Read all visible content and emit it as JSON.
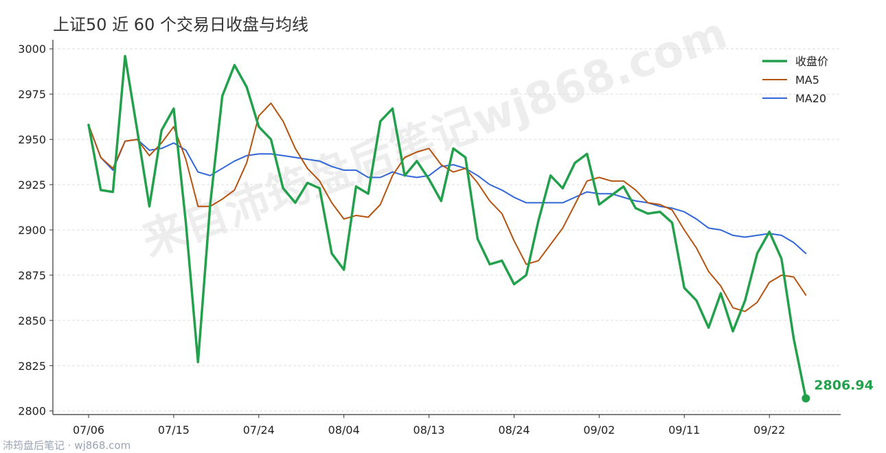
{
  "title": "上证50 近 60 个交易日收盘与均线",
  "watermark": "来自沛筠盘后笔记wj868.com",
  "footer": "沛筠盘后笔记 · wj868.com",
  "colors": {
    "close": "#22a04b",
    "ma5": "#b5530e",
    "ma20": "#2f66d8"
  },
  "chart_data": {
    "type": "line",
    "title": "上证50 近 60 个交易日收盘与均线",
    "xlabel": "",
    "ylabel": "",
    "ylim": [
      2798,
      3005
    ],
    "yticks": [
      2800,
      2825,
      2850,
      2875,
      2900,
      2925,
      2950,
      2975,
      3000
    ],
    "xticks": [
      {
        "index": 0,
        "label": "07/06"
      },
      {
        "index": 7,
        "label": "07/15"
      },
      {
        "index": 14,
        "label": "07/24"
      },
      {
        "index": 21,
        "label": "08/04"
      },
      {
        "index": 28,
        "label": "08/13"
      },
      {
        "index": 35,
        "label": "08/24"
      },
      {
        "index": 42,
        "label": "09/02"
      },
      {
        "index": 49,
        "label": "09/11"
      },
      {
        "index": 56,
        "label": "09/22"
      }
    ],
    "grid": true,
    "legend_position": "top-right",
    "series": [
      {
        "name": "收盘价",
        "key": "close",
        "values": [
          2958,
          2922,
          2921,
          2996,
          2955,
          2913,
          2955,
          2967,
          2904,
          2827,
          2914,
          2974,
          2991,
          2979,
          2957,
          2950,
          2923,
          2915,
          2926,
          2923,
          2887,
          2878,
          2924,
          2920,
          2960,
          2967,
          2930,
          2938,
          2928,
          2916,
          2945,
          2940,
          2895,
          2881,
          2883,
          2870,
          2875,
          2905,
          2930,
          2923,
          2937,
          2942,
          2914,
          2919,
          2924,
          2912,
          2909,
          2910,
          2904,
          2868,
          2861,
          2846,
          2865,
          2844,
          2861,
          2887,
          2899,
          2884,
          2840,
          2806.94
        ]
      },
      {
        "name": "MA5",
        "key": "ma5",
        "values": [
          2958,
          2940,
          2934,
          2949,
          2950,
          2941,
          2948,
          2957,
          2939,
          2913,
          2913,
          2917,
          2922,
          2937,
          2963,
          2970,
          2960,
          2945,
          2934,
          2927,
          2915,
          2906,
          2908,
          2907,
          2914,
          2930,
          2940,
          2943,
          2945,
          2936,
          2932,
          2934,
          2926,
          2916,
          2909,
          2894,
          2881,
          2883,
          2892,
          2901,
          2914,
          2927,
          2929,
          2927,
          2927,
          2922,
          2915,
          2914,
          2911,
          2900,
          2890,
          2877,
          2869,
          2857,
          2855,
          2860,
          2871,
          2875,
          2874,
          2864
        ]
      },
      {
        "name": "MA20",
        "key": "ma20",
        "values": [
          2958,
          2940,
          2933,
          2949,
          2950,
          2944,
          2945,
          2948,
          2944,
          2932,
          2930,
          2934,
          2938,
          2941,
          2942,
          2942,
          2941,
          2940,
          2939,
          2938,
          2935,
          2933,
          2933,
          2929,
          2929,
          2932,
          2930,
          2929,
          2930,
          2935,
          2936,
          2934,
          2930,
          2925,
          2922,
          2918,
          2915,
          2915,
          2915,
          2915,
          2918,
          2921,
          2920,
          2920,
          2918,
          2916,
          2915,
          2913,
          2912,
          2910,
          2906,
          2901,
          2900,
          2897,
          2896,
          2897,
          2898,
          2897,
          2893,
          2887
        ]
      }
    ],
    "last_point_label": "2806.94"
  }
}
